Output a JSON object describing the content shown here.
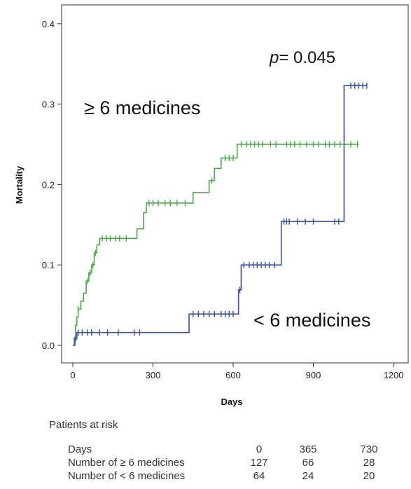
{
  "chart_data": {
    "type": "line",
    "step": true,
    "xlabel": "Days",
    "ylabel": "Mortality",
    "xlim": [
      -40,
      1240
    ],
    "ylim": [
      -0.02,
      0.41
    ],
    "xticks": [
      0,
      300,
      600,
      900,
      1200
    ],
    "yticks": [
      0.0,
      0.1,
      0.2,
      0.3,
      0.4
    ],
    "xtick_labels": [
      "0",
      "300",
      "600",
      "900",
      "1200"
    ],
    "ytick_labels": [
      "0.0",
      "0.1",
      "0.2",
      "0.3",
      "0.4"
    ],
    "grid": false,
    "series": [
      {
        "name": "≥ 6 medicines",
        "color": "#4aa84a",
        "steps": [
          [
            0,
            0.0
          ],
          [
            5,
            0.01
          ],
          [
            10,
            0.025
          ],
          [
            15,
            0.035
          ],
          [
            20,
            0.045
          ],
          [
            30,
            0.055
          ],
          [
            40,
            0.065
          ],
          [
            50,
            0.08
          ],
          [
            60,
            0.09
          ],
          [
            70,
            0.1
          ],
          [
            80,
            0.115
          ],
          [
            90,
            0.125
          ],
          [
            100,
            0.133
          ],
          [
            240,
            0.145
          ],
          [
            265,
            0.165
          ],
          [
            275,
            0.177
          ],
          [
            450,
            0.19
          ],
          [
            510,
            0.205
          ],
          [
            530,
            0.22
          ],
          [
            555,
            0.233
          ],
          [
            615,
            0.25
          ],
          [
            1070,
            0.25
          ]
        ],
        "censor_marks": [
          [
            20,
            0.045
          ],
          [
            55,
            0.08
          ],
          [
            65,
            0.09
          ],
          [
            75,
            0.1
          ],
          [
            85,
            0.115
          ],
          [
            110,
            0.133
          ],
          [
            125,
            0.133
          ],
          [
            140,
            0.133
          ],
          [
            160,
            0.133
          ],
          [
            175,
            0.133
          ],
          [
            200,
            0.133
          ],
          [
            285,
            0.177
          ],
          [
            300,
            0.177
          ],
          [
            320,
            0.177
          ],
          [
            345,
            0.177
          ],
          [
            365,
            0.177
          ],
          [
            390,
            0.177
          ],
          [
            420,
            0.177
          ],
          [
            520,
            0.205
          ],
          [
            570,
            0.233
          ],
          [
            585,
            0.233
          ],
          [
            600,
            0.233
          ],
          [
            630,
            0.25
          ],
          [
            650,
            0.25
          ],
          [
            665,
            0.25
          ],
          [
            680,
            0.25
          ],
          [
            695,
            0.25
          ],
          [
            710,
            0.25
          ],
          [
            740,
            0.25
          ],
          [
            760,
            0.25
          ],
          [
            800,
            0.25
          ],
          [
            815,
            0.25
          ],
          [
            830,
            0.25
          ],
          [
            850,
            0.25
          ],
          [
            875,
            0.25
          ],
          [
            900,
            0.25
          ],
          [
            920,
            0.25
          ],
          [
            945,
            0.25
          ],
          [
            960,
            0.25
          ],
          [
            980,
            0.25
          ],
          [
            1000,
            0.25
          ],
          [
            1040,
            0.25
          ],
          [
            1065,
            0.25
          ]
        ]
      },
      {
        "name": "< 6 medicines",
        "color": "#3a4fa0",
        "steps": [
          [
            0,
            0.0
          ],
          [
            8,
            0.008
          ],
          [
            15,
            0.016
          ],
          [
            435,
            0.016
          ],
          [
            435,
            0.039
          ],
          [
            615,
            0.039
          ],
          [
            620,
            0.069
          ],
          [
            630,
            0.1
          ],
          [
            780,
            0.1
          ],
          [
            780,
            0.154
          ],
          [
            1015,
            0.154
          ],
          [
            1015,
            0.323
          ],
          [
            1100,
            0.323
          ]
        ],
        "censor_marks": [
          [
            10,
            0.008
          ],
          [
            20,
            0.016
          ],
          [
            35,
            0.016
          ],
          [
            55,
            0.016
          ],
          [
            70,
            0.016
          ],
          [
            100,
            0.016
          ],
          [
            130,
            0.016
          ],
          [
            170,
            0.016
          ],
          [
            230,
            0.016
          ],
          [
            250,
            0.016
          ],
          [
            450,
            0.039
          ],
          [
            470,
            0.039
          ],
          [
            490,
            0.039
          ],
          [
            510,
            0.039
          ],
          [
            530,
            0.039
          ],
          [
            555,
            0.039
          ],
          [
            570,
            0.039
          ],
          [
            585,
            0.039
          ],
          [
            600,
            0.039
          ],
          [
            625,
            0.069
          ],
          [
            640,
            0.1
          ],
          [
            660,
            0.1
          ],
          [
            675,
            0.1
          ],
          [
            690,
            0.1
          ],
          [
            705,
            0.1
          ],
          [
            720,
            0.1
          ],
          [
            735,
            0.1
          ],
          [
            755,
            0.1
          ],
          [
            790,
            0.154
          ],
          [
            800,
            0.154
          ],
          [
            810,
            0.154
          ],
          [
            840,
            0.154
          ],
          [
            870,
            0.154
          ],
          [
            900,
            0.154
          ],
          [
            980,
            0.154
          ],
          [
            995,
            0.154
          ],
          [
            1040,
            0.323
          ],
          [
            1055,
            0.323
          ],
          [
            1070,
            0.323
          ],
          [
            1085,
            0.323
          ],
          [
            1100,
            0.323
          ]
        ]
      }
    ],
    "annotations": {
      "p_label": "p",
      "p_value": "= 0.045",
      "group_high": "≥ 6 medicines",
      "group_low": "< 6 medicines"
    }
  },
  "risk_table": {
    "title": "Patients at risk",
    "rows": [
      {
        "label": "Days",
        "values": [
          "0",
          "365",
          "730"
        ]
      },
      {
        "label": "Number of ≥ 6 medicines",
        "values": [
          "127",
          "66",
          "28"
        ]
      },
      {
        "label": "Number of < 6 medicines",
        "values": [
          "64",
          "24",
          "20"
        ]
      }
    ]
  }
}
